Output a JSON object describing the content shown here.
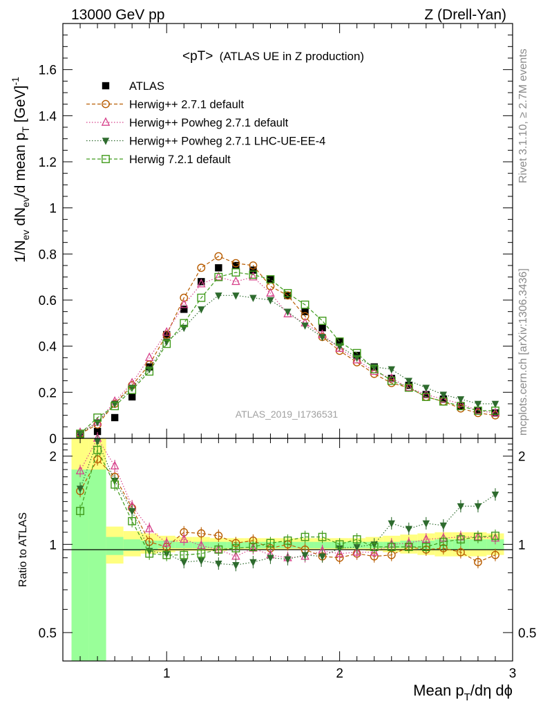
{
  "header": {
    "left": "13000 GeV pp",
    "right": "Z (Drell-Yan)"
  },
  "side_labels": {
    "rivet": "Rivet 3.1.10, ≥ 2.7M events",
    "mcplots": "mcplots.cern.ch [arXiv:1306.3436]"
  },
  "watermark": "ATLAS_2019_I1736531",
  "plot_title": {
    "main": "<pT>",
    "sub": "(ATLAS UE in Z production)"
  },
  "ylabel_top": {
    "p1": "1/N",
    "sub1": "ev",
    "p2": " dN",
    "sub2": "ev",
    "p3": "/d mean p",
    "sub3": "T",
    "p4": " [GeV]",
    "sup": "-1"
  },
  "ylabel_ratio": "Ratio to ATLAS",
  "xlabel": {
    "p1": "Mean p",
    "sub": "T",
    "p2": "/dη dϕ"
  },
  "colors": {
    "atlas": "#000000",
    "herwigpp": "#b85c00",
    "powheg": "#d6408a",
    "powheg_ue": "#2e6b2e",
    "herwig7": "#3f9a1a",
    "band_outer": "#ffff80",
    "band_inner": "#99ff99"
  },
  "chart_data": [
    {
      "type": "scatter",
      "panel": "main",
      "xlim": [
        0.4,
        3.0
      ],
      "ylim": [
        0,
        1.8
      ],
      "yticks": [
        {
          "v": 0,
          "label": "0"
        },
        {
          "v": 0.2,
          "label": "0.2"
        },
        {
          "v": 0.4,
          "label": "0.4"
        },
        {
          "v": 0.6,
          "label": "0.6"
        },
        {
          "v": 0.8,
          "label": "0.8"
        },
        {
          "v": 1.0,
          "label": "1"
        },
        {
          "v": 1.2,
          "label": "1.2"
        },
        {
          "v": 1.4,
          "label": "1.4"
        },
        {
          "v": 1.6,
          "label": "1.6"
        }
      ],
      "x": [
        0.5,
        0.6,
        0.7,
        0.8,
        0.9,
        1.0,
        1.1,
        1.2,
        1.3,
        1.4,
        1.5,
        1.6,
        1.7,
        1.8,
        1.9,
        2.0,
        2.1,
        2.2,
        2.3,
        2.4,
        2.5,
        2.6,
        2.7,
        2.8,
        2.9
      ],
      "series": [
        {
          "key": "atlas",
          "name": "ATLAS",
          "marker": "square",
          "line": "none",
          "values": [
            0.015,
            0.03,
            0.09,
            0.18,
            0.31,
            0.45,
            0.56,
            0.68,
            0.74,
            0.75,
            0.73,
            0.69,
            0.62,
            0.55,
            0.48,
            0.42,
            0.36,
            0.31,
            0.26,
            0.23,
            0.19,
            0.17,
            0.14,
            0.12,
            0.11
          ]
        },
        {
          "key": "herwigpp",
          "name": "Herwig++ 2.7.1 default",
          "marker": "circle",
          "line": "dashed",
          "values": [
            0.02,
            0.06,
            0.15,
            0.23,
            0.32,
            0.45,
            0.61,
            0.74,
            0.79,
            0.76,
            0.75,
            0.66,
            0.62,
            0.53,
            0.44,
            0.38,
            0.33,
            0.28,
            0.24,
            0.22,
            0.18,
            0.16,
            0.13,
            0.11,
            0.1
          ]
        },
        {
          "key": "powheg",
          "name": "Herwig++ Powheg 2.7.1 default",
          "marker": "triangle",
          "line": "dotted",
          "values": [
            0.025,
            0.07,
            0.16,
            0.24,
            0.35,
            0.46,
            0.58,
            0.67,
            0.7,
            0.68,
            0.7,
            0.63,
            0.54,
            0.5,
            0.45,
            0.39,
            0.34,
            0.29,
            0.26,
            0.22,
            0.19,
            0.17,
            0.15,
            0.12,
            0.11
          ]
        },
        {
          "key": "powheg_ue",
          "name": "Herwig++ Powheg 2.7.1 LHC-UE-EE-4",
          "marker": "triangle-down",
          "line": "dotted",
          "values": [
            0.02,
            0.07,
            0.15,
            0.22,
            0.3,
            0.42,
            0.48,
            0.56,
            0.62,
            0.62,
            0.61,
            0.6,
            0.55,
            0.49,
            0.44,
            0.4,
            0.35,
            0.31,
            0.3,
            0.25,
            0.22,
            0.19,
            0.17,
            0.15,
            0.15
          ]
        },
        {
          "key": "herwig7",
          "name": "Herwig 7.2.1 default",
          "marker": "open-square",
          "line": "dashed",
          "values": [
            0.02,
            0.09,
            0.14,
            0.21,
            0.29,
            0.41,
            0.5,
            0.61,
            0.7,
            0.72,
            0.71,
            0.69,
            0.63,
            0.58,
            0.51,
            0.42,
            0.37,
            0.3,
            0.25,
            0.22,
            0.18,
            0.16,
            0.14,
            0.12,
            0.12
          ]
        }
      ]
    },
    {
      "type": "scatter",
      "panel": "ratio",
      "xlim": [
        0.4,
        3.0
      ],
      "ylim": [
        0.4,
        2.3
      ],
      "ylabel": "Ratio to ATLAS",
      "xlabel": "Mean pT/dη dϕ",
      "yticks": [
        {
          "v": 0.5,
          "label": "0.5"
        },
        {
          "v": 1.0,
          "label": "1"
        },
        {
          "v": 2.0,
          "label": "2"
        }
      ],
      "xticks": [
        {
          "v": 1,
          "label": "1"
        },
        {
          "v": 2,
          "label": "2"
        },
        {
          "v": 3,
          "label": "3"
        }
      ],
      "x": [
        0.5,
        0.6,
        0.7,
        0.8,
        0.9,
        1.0,
        1.1,
        1.2,
        1.3,
        1.4,
        1.5,
        1.6,
        1.7,
        1.8,
        1.9,
        2.0,
        2.1,
        2.2,
        2.3,
        2.4,
        2.5,
        2.6,
        2.7,
        2.8,
        2.9
      ],
      "bands": {
        "edges": [
          0.45,
          0.55,
          0.65,
          0.75,
          0.85,
          0.95,
          1.05,
          1.15,
          1.25,
          1.35,
          1.45,
          1.55,
          1.65,
          1.75,
          1.85,
          1.95,
          2.05,
          2.15,
          2.25,
          2.35,
          2.45,
          2.55,
          2.65,
          2.75,
          2.85,
          2.95
        ],
        "outer_lo": [
          0.4,
          0.83,
          0.86,
          0.91,
          0.93,
          0.94,
          0.95,
          0.95,
          0.95,
          0.96,
          0.96,
          0.96,
          0.96,
          0.96,
          0.96,
          0.96,
          0.96,
          0.95,
          0.94,
          0.93,
          0.92,
          0.91,
          0.91,
          0.91,
          0.92
        ],
        "outer_hi": [
          2.3,
          2.3,
          1.15,
          1.11,
          1.09,
          1.07,
          1.06,
          1.06,
          1.05,
          1.05,
          1.05,
          1.05,
          1.05,
          1.05,
          1.05,
          1.05,
          1.05,
          1.06,
          1.07,
          1.08,
          1.09,
          1.1,
          1.1,
          1.1,
          1.09
        ],
        "inner_lo": [
          0.4,
          0.4,
          0.92,
          0.95,
          0.96,
          0.97,
          0.97,
          0.97,
          0.97,
          0.97,
          0.97,
          0.97,
          0.97,
          0.97,
          0.97,
          0.97,
          0.97,
          0.97,
          0.97,
          0.97,
          0.96,
          0.96,
          0.96,
          0.96,
          0.96
        ],
        "inner_hi": [
          1.8,
          1.8,
          1.06,
          1.04,
          1.03,
          1.03,
          1.02,
          1.02,
          1.02,
          1.02,
          1.02,
          1.02,
          1.02,
          1.02,
          1.02,
          1.02,
          1.02,
          1.02,
          1.02,
          1.03,
          1.03,
          1.04,
          1.04,
          1.04,
          1.04
        ]
      },
      "series": [
        {
          "key": "herwigpp",
          "name": "Herwig++ 2.7.1 default",
          "marker": "circle",
          "line": "dashed",
          "values": [
            1.52,
            1.95,
            1.7,
            1.33,
            1.02,
            0.98,
            1.1,
            1.09,
            1.07,
            1.01,
            1.03,
            0.97,
            1.0,
            0.96,
            0.91,
            0.9,
            0.93,
            0.91,
            0.92,
            0.98,
            0.96,
            0.97,
            0.94,
            0.87,
            0.92
          ]
        },
        {
          "key": "powheg",
          "name": "Herwig++ Powheg 2.7.1 default",
          "marker": "triangle",
          "line": "dotted",
          "values": [
            1.78,
            2.3,
            1.85,
            1.35,
            1.13,
            1.01,
            1.04,
            0.99,
            0.96,
            0.91,
            0.97,
            0.92,
            0.9,
            0.91,
            0.95,
            0.93,
            0.94,
            0.94,
            1.0,
            1.01,
            1.04,
            1.05,
            1.06,
            1.06,
            1.05
          ]
        },
        {
          "key": "powheg_ue",
          "name": "Herwig++ Powheg 2.7.1 LHC-UE-EE-4",
          "marker": "triangle-down",
          "line": "dotted",
          "values": [
            1.55,
            2.25,
            1.65,
            1.3,
            0.95,
            0.93,
            0.87,
            0.88,
            0.86,
            0.85,
            0.87,
            0.9,
            0.89,
            0.92,
            0.91,
            0.97,
            0.98,
            1.0,
            1.18,
            1.13,
            1.18,
            1.16,
            1.35,
            1.35,
            1.48
          ]
        },
        {
          "key": "herwig7",
          "name": "Herwig 7.2.1 default",
          "marker": "open-square",
          "line": "dashed",
          "values": [
            1.3,
            2.1,
            1.6,
            1.2,
            0.93,
            0.92,
            0.92,
            0.93,
            0.96,
            0.97,
            0.98,
            1.01,
            1.03,
            1.06,
            1.06,
            1.0,
            1.04,
            0.98,
            0.98,
            0.98,
            0.98,
            1.02,
            1.04,
            1.06,
            1.07
          ]
        }
      ]
    }
  ]
}
